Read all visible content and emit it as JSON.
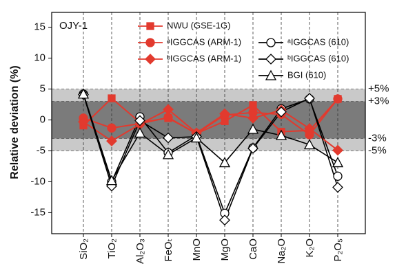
{
  "chart_data": {
    "type": "line",
    "annotation": "OJY-1",
    "y_label": "Relative deviation (%)",
    "categories": [
      "SiO₂",
      "TiO₂",
      "Al₂O₃",
      "FeOₜ",
      "MnO",
      "MgO",
      "CaO",
      "Na₂O",
      "K₂O",
      "P₂O₅"
    ],
    "ylim": [
      -18.4,
      17.4
    ],
    "yticks": [
      -15,
      -10,
      -5,
      0,
      5,
      10,
      15
    ],
    "bands": [
      {
        "value": 5,
        "label": "+5%"
      },
      {
        "value": 3,
        "label": "+3%"
      },
      {
        "value": -3,
        "label": "-3%"
      },
      {
        "value": -5,
        "label": "-5%"
      }
    ],
    "band_colors": [
      "#c9c9c9",
      "#7b7b7b"
    ],
    "series": [
      {
        "name": "NWU (GSE-1G)",
        "color": "#e23a2e",
        "marker": "square",
        "filled": true,
        "values": [
          -0.9,
          3.5,
          -0.4,
          0.3,
          -2.2,
          -0.2,
          2.4,
          -1.9,
          -1.7,
          3.4
        ]
      },
      {
        "name": "ᵃIGGCAS (ARM-1)",
        "color": "#e23a2e",
        "marker": "circle",
        "filled": true,
        "values": [
          0.3,
          -1.3,
          -0.6,
          0.4,
          -2.2,
          0.8,
          1.2,
          0.9,
          -2.4,
          3.4
        ]
      },
      {
        "name": "ᵃIGGCAS (610)",
        "color": "#000000",
        "marker": "circle",
        "filled": false,
        "values": [
          4.2,
          -10.0,
          0.5,
          -5.3,
          -2.5,
          -15.1,
          -4.5,
          1.8,
          3.4,
          -9.1
        ]
      },
      {
        "name": "ᵇIGGCAS (ARM-1)",
        "color": "#e23a2e",
        "marker": "diamond",
        "filled": true,
        "values": [
          -0.3,
          -3.4,
          -0.7,
          1.7,
          -2.1,
          1.0,
          0.3,
          1.6,
          -1.4,
          -4.9
        ]
      },
      {
        "name": "ᵇIGGCAS (610)",
        "color": "#000000",
        "marker": "diamond",
        "filled": false,
        "values": [
          4.1,
          -10.7,
          -0.1,
          -2.9,
          -2.7,
          -16.2,
          -4.6,
          1.3,
          3.5,
          -10.9
        ]
      },
      {
        "name": "BGI (610)",
        "color": "#000000",
        "marker": "triangle",
        "filled": false,
        "values": [
          4.2,
          -9.8,
          -2.1,
          -5.6,
          -2.9,
          -6.9,
          -1.5,
          -2.5,
          -4.0,
          -6.9
        ]
      }
    ]
  }
}
